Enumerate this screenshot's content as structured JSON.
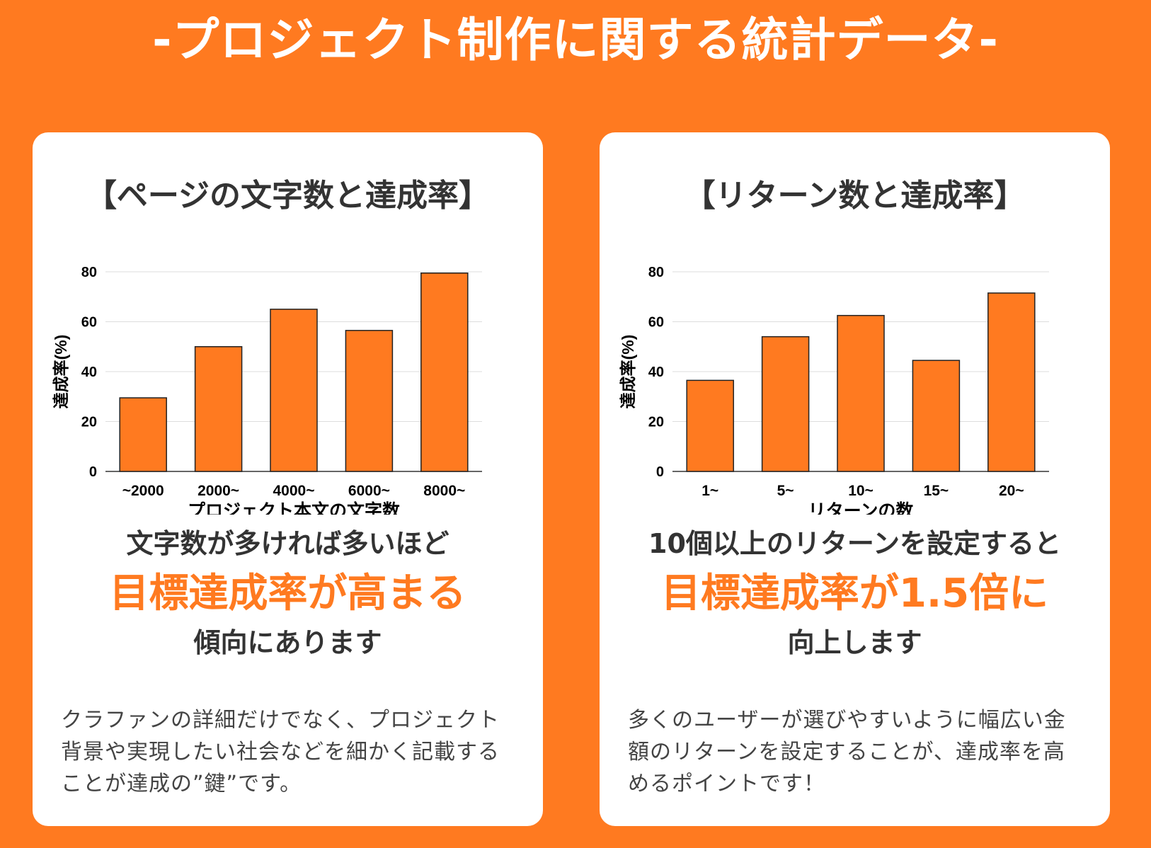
{
  "page": {
    "title": "-プロジェクト制作に関する統計データ-"
  },
  "colors": {
    "background": "#FF7A20",
    "bar": "#FF7A20",
    "card": "#FFFFFF"
  },
  "cards": [
    {
      "title": "【ページの文字数と達成率】",
      "headline1": "文字数が多ければ多いほど",
      "headline2": "目標達成率が高まる",
      "headline3": "傾向にあります",
      "description": "クラファンの詳細だけでなく、プロジェクト背景や実現したい社会などを細かく記載することが達成の”鍵”です。"
    },
    {
      "title": "【リターン数と達成率】",
      "headline1": "10個以上のリターンを設定すると",
      "headline2": "目標達成率が1.5倍に",
      "headline3": "向上します",
      "description": "多くのユーザーが選びやすいように幅広い金額のリターンを設定することが、達成率を高めるポイントです！"
    }
  ],
  "chart_data": [
    {
      "type": "bar",
      "categories": [
        "~2000",
        "2000~",
        "4000~",
        "6000~",
        "8000~"
      ],
      "values": [
        29.5,
        50,
        65,
        56.5,
        79.5
      ],
      "xlabel": "プロジェクト本文の文字数",
      "ylabel": "達成率(%)",
      "ylim": [
        0,
        80
      ],
      "yticks": [
        0,
        20,
        40,
        60,
        80
      ],
      "grid": true
    },
    {
      "type": "bar",
      "categories": [
        "1~",
        "5~",
        "10~",
        "15~",
        "20~"
      ],
      "values": [
        36.5,
        54,
        62.5,
        44.5,
        71.5
      ],
      "xlabel": "リターンの数",
      "ylabel": "達成率(%)",
      "ylim": [
        0,
        80
      ],
      "yticks": [
        0,
        20,
        40,
        60,
        80
      ],
      "grid": true
    }
  ]
}
